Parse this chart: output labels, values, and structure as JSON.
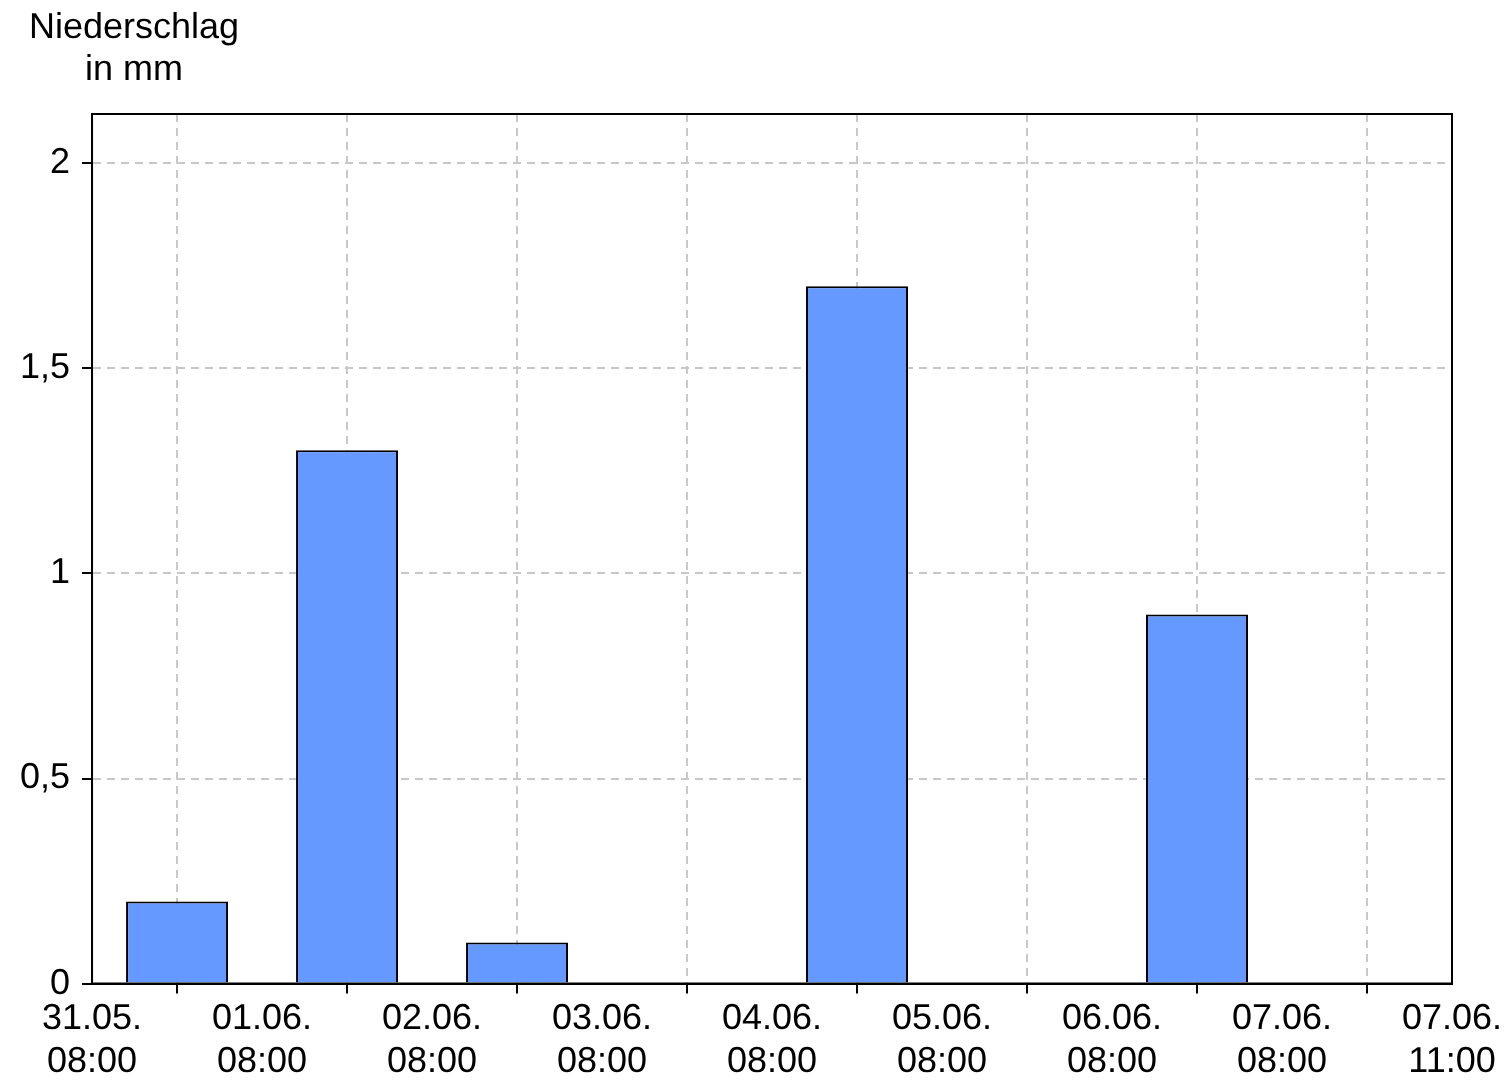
{
  "chart_data": {
    "type": "bar",
    "ylabel": "Niederschlag in mm",
    "x": [
      "--05-31T20:00",
      "--06-01T20:00",
      "--06-02T20:00",
      "--06-03T20:00",
      "--06-04T20:00",
      "--06-05T20:00",
      "--06-06T20:00"
    ],
    "values": [
      0.2,
      1.3,
      0.1,
      0,
      1.7,
      0,
      0.9
    ],
    "color": "#6699ff",
    "xlim": [
      "--05-31T08:00",
      "--06-08T08:00"
    ],
    "xticks": [
      {
        "value": "--05-31T08:00",
        "label": "31.05.\n08:00"
      },
      {
        "value": "--06-01T08:00",
        "label": "01.06.\n08:00"
      },
      {
        "value": "--06-02T08:00",
        "label": "02.06.\n08:00"
      },
      {
        "value": "--06-03T08:00",
        "label": "03.06.\n08:00"
      },
      {
        "value": "--06-04T08:00",
        "label": "04.06.\n08:00"
      },
      {
        "value": "--06-05T08:00",
        "label": "05.06.\n08:00"
      },
      {
        "value": "--06-06T08:00",
        "label": "06.06.\n08:00"
      },
      {
        "value": "--06-07T08:00",
        "label": "07.06.\n08:00"
      },
      {
        "value": "--06-08T08:00",
        "label": "07.06.\n11:00"
      }
    ],
    "ylim": [
      0,
      2.12
    ],
    "yticks": [
      0,
      {
        "value": 0.5,
        "label": "0,5"
      },
      1,
      {
        "value": 1.5,
        "label": "1,5"
      },
      2
    ],
    "grid": true,
    "legend": false
  }
}
